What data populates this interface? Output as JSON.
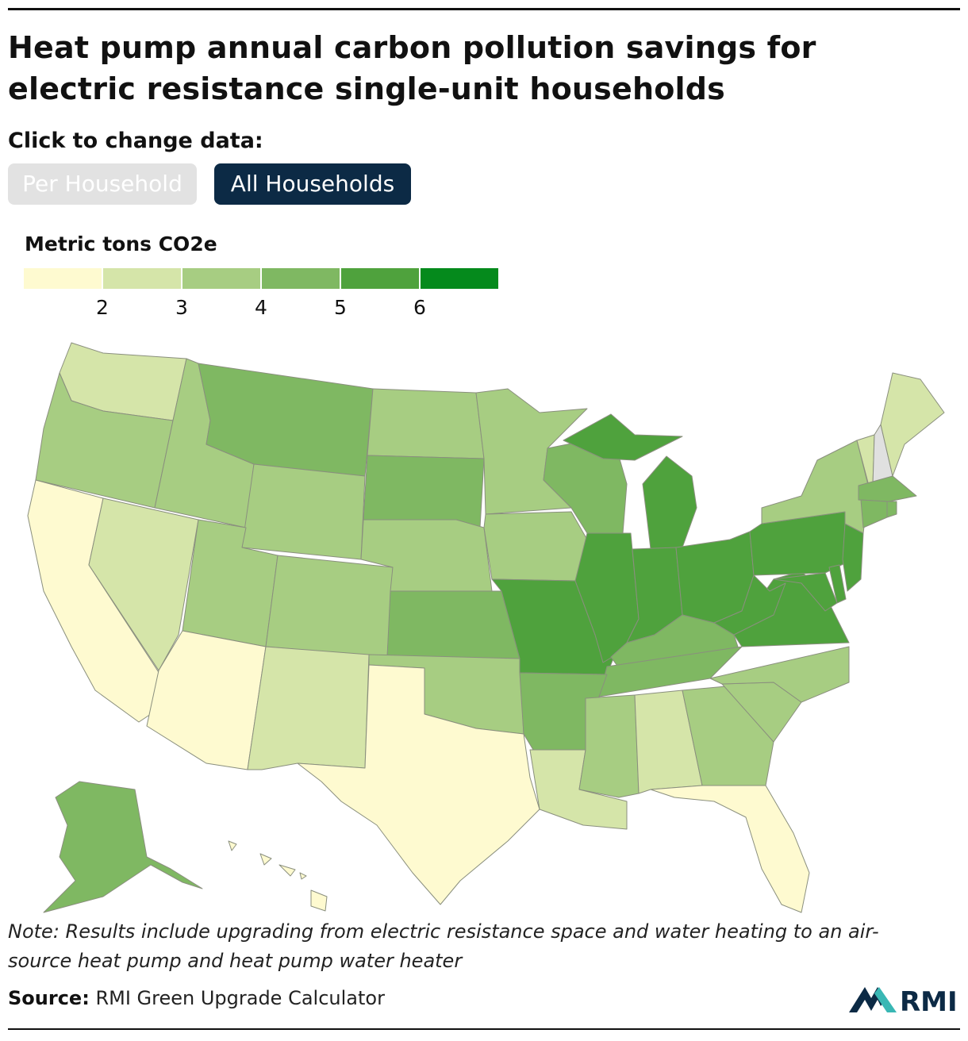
{
  "title": "Heat pump annual carbon pollution savings for electric resistance single-unit households",
  "controls": {
    "prompt": "Click to change data:",
    "per_household_label": "Per Household",
    "all_households_label": "All Households",
    "active": "All Households"
  },
  "legend": {
    "title": "Metric tons CO2e",
    "tick_labels": [
      "2",
      "3",
      "4",
      "5",
      "6"
    ],
    "colors": [
      "#fefad0",
      "#d5e5a9",
      "#a7cd82",
      "#7fb862",
      "#4fa23d",
      "#058a1c"
    ]
  },
  "colors": {
    "no_data": "#e0e0e0",
    "brand_dark": "#0c2a45",
    "brand_teal": "#39b7b4"
  },
  "map_data": {
    "type": "choropleth",
    "bins": [
      {
        "bin": 0,
        "states": [
          "CA",
          "AZ",
          "TX",
          "FL",
          "HI"
        ]
      },
      {
        "bin": 1,
        "states": [
          "WA",
          "NV",
          "NM",
          "LA",
          "AL",
          "VT",
          "ME"
        ]
      },
      {
        "bin": 2,
        "states": [
          "OR",
          "ID",
          "UT",
          "CO",
          "WY",
          "ND",
          "NE",
          "MN",
          "IA",
          "OK",
          "NY",
          "NC",
          "SC",
          "GA",
          "MS"
        ]
      },
      {
        "bin": 3,
        "states": [
          "MT",
          "SD",
          "KS",
          "WI",
          "AR",
          "TN",
          "KY",
          "MA",
          "CT",
          "RI",
          "AK"
        ]
      },
      {
        "bin": 4,
        "states": [
          "MO",
          "IL",
          "IN",
          "MI",
          "OH",
          "PA",
          "WV",
          "VA",
          "NJ",
          "DE",
          "MD"
        ]
      }
    ],
    "no_data_states": [
      "NH"
    ]
  },
  "note": "Note: Results include upgrading from electric resistance space and water heating to an air-source heat pump and heat pump water heater",
  "source": {
    "label": "Source:",
    "text": "RMI Green Upgrade Calculator"
  },
  "logo": {
    "text": "RMI"
  }
}
